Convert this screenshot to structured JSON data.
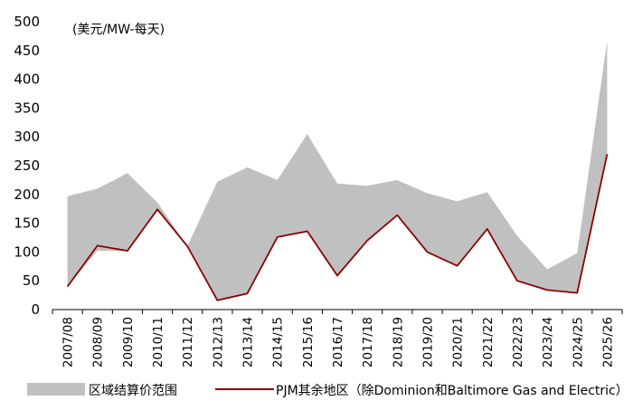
{
  "chart_data": {
    "type": "area",
    "unit_label": "(美元/MW-每天)",
    "categories": [
      "2007/08",
      "2008/09",
      "2009/10",
      "2010/11",
      "2011/12",
      "2012/13",
      "2013/14",
      "2014/15",
      "2015/16",
      "2016/17",
      "2017/18",
      "2018/19",
      "2019/20",
      "2020/21",
      "2021/22",
      "2022/23",
      "2023/24",
      "2024/25",
      "2025/26"
    ],
    "ylim": [
      0,
      500
    ],
    "yticks": [
      0,
      50,
      100,
      150,
      200,
      250,
      300,
      350,
      400,
      450,
      500
    ],
    "grid": false,
    "legend_position": "bottom",
    "series": [
      {
        "name": "区域结算价范围",
        "kind": "range",
        "color": "#c0c0c0",
        "low": [
          40,
          102,
          102,
          174,
          110,
          16,
          28,
          126,
          136,
          59,
          120,
          164,
          100,
          76,
          140,
          50,
          34,
          29,
          270
        ],
        "high": [
          197,
          210,
          237,
          186,
          110,
          222,
          247,
          225,
          305,
          219,
          215,
          225,
          202,
          188,
          204,
          128,
          70,
          98,
          467
        ]
      },
      {
        "name": "PJM其余地区（除Dominion和Baltimore Gas and Electric）",
        "kind": "line",
        "color": "#8b0000",
        "values": [
          40,
          111,
          102,
          174,
          110,
          16,
          28,
          126,
          136,
          59,
          120,
          164,
          100,
          76,
          140,
          50,
          34,
          29,
          270
        ]
      }
    ]
  }
}
